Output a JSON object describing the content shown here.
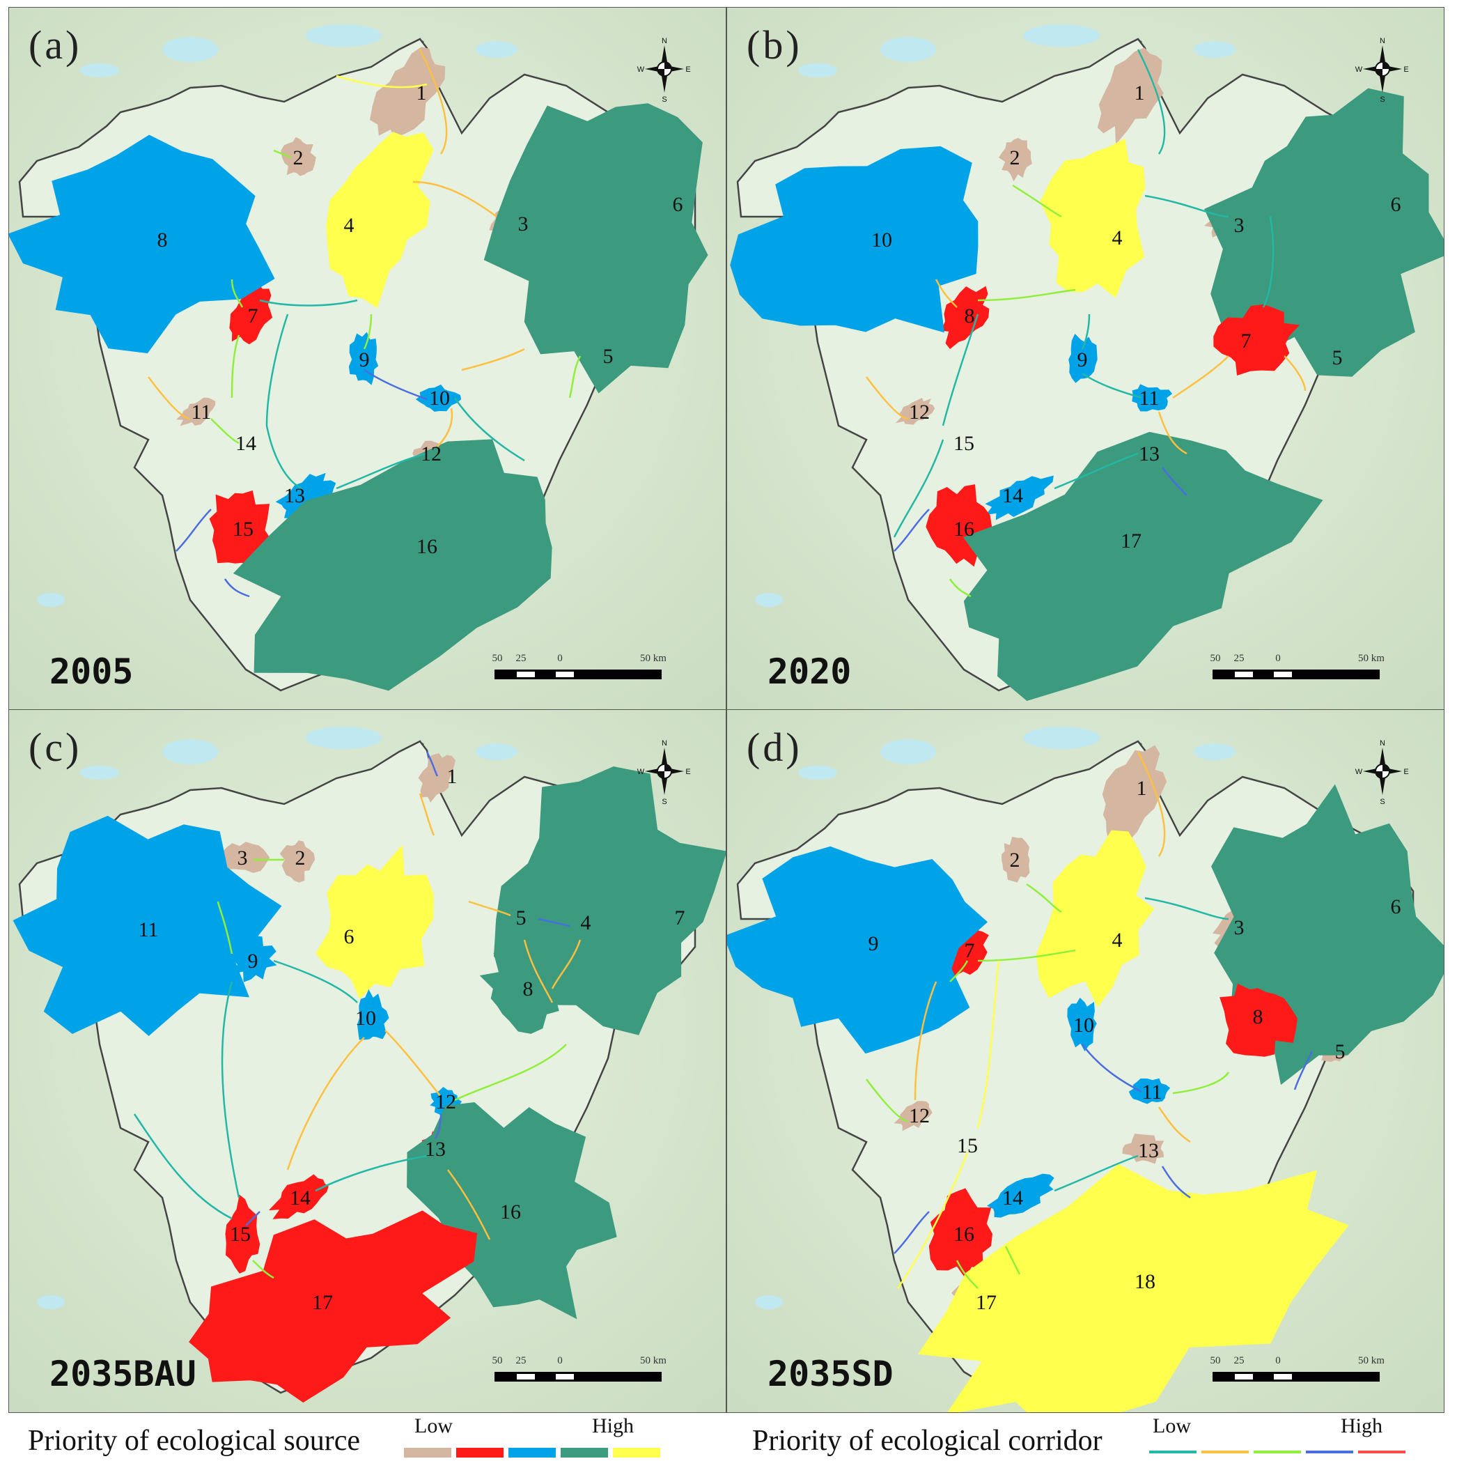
{
  "panels": [
    {
      "label": "(a)",
      "year": "2005",
      "sources": [
        {
          "n": "1",
          "p": "low"
        },
        {
          "n": "2",
          "p": "low"
        },
        {
          "n": "3",
          "p": "low"
        },
        {
          "n": "4",
          "p": "highest"
        },
        {
          "n": "5",
          "p": "low"
        },
        {
          "n": "6",
          "p": "high"
        },
        {
          "n": "7",
          "p": "medium-low"
        },
        {
          "n": "8",
          "p": "medium"
        },
        {
          "n": "9",
          "p": "medium"
        },
        {
          "n": "10",
          "p": "medium"
        },
        {
          "n": "11",
          "p": "low"
        },
        {
          "n": "12",
          "p": "low"
        },
        {
          "n": "13",
          "p": "medium"
        },
        {
          "n": "14",
          "p": "none"
        },
        {
          "n": "15",
          "p": "medium-low"
        },
        {
          "n": "16",
          "p": "high"
        }
      ]
    },
    {
      "label": "(b)",
      "year": "2020",
      "sources": [
        {
          "n": "1",
          "p": "low"
        },
        {
          "n": "2",
          "p": "low"
        },
        {
          "n": "3",
          "p": "low"
        },
        {
          "n": "4",
          "p": "highest"
        },
        {
          "n": "5",
          "p": "low"
        },
        {
          "n": "6",
          "p": "high"
        },
        {
          "n": "7",
          "p": "medium-low"
        },
        {
          "n": "8",
          "p": "medium-low"
        },
        {
          "n": "9",
          "p": "medium"
        },
        {
          "n": "10",
          "p": "medium"
        },
        {
          "n": "11",
          "p": "medium"
        },
        {
          "n": "12",
          "p": "low"
        },
        {
          "n": "13",
          "p": "low"
        },
        {
          "n": "14",
          "p": "medium"
        },
        {
          "n": "15",
          "p": "none"
        },
        {
          "n": "16",
          "p": "medium-low"
        },
        {
          "n": "17",
          "p": "high"
        }
      ]
    },
    {
      "label": "(c)",
      "year": "2035BAU",
      "sources": [
        {
          "n": "1",
          "p": "low"
        },
        {
          "n": "2",
          "p": "low"
        },
        {
          "n": "3",
          "p": "low"
        },
        {
          "n": "4",
          "p": "low"
        },
        {
          "n": "5",
          "p": "medium-low"
        },
        {
          "n": "6",
          "p": "highest"
        },
        {
          "n": "7",
          "p": "high"
        },
        {
          "n": "8",
          "p": "high"
        },
        {
          "n": "9",
          "p": "medium"
        },
        {
          "n": "10",
          "p": "medium"
        },
        {
          "n": "11",
          "p": "medium"
        },
        {
          "n": "12",
          "p": "medium"
        },
        {
          "n": "13",
          "p": "medium-low"
        },
        {
          "n": "14",
          "p": "medium-low"
        },
        {
          "n": "15",
          "p": "medium-low"
        },
        {
          "n": "16",
          "p": "high"
        },
        {
          "n": "17",
          "p": "medium-low"
        }
      ]
    },
    {
      "label": "(d)",
      "year": "2035SD",
      "sources": [
        {
          "n": "1",
          "p": "low"
        },
        {
          "n": "2",
          "p": "low"
        },
        {
          "n": "3",
          "p": "low"
        },
        {
          "n": "4",
          "p": "highest"
        },
        {
          "n": "5",
          "p": "low"
        },
        {
          "n": "6",
          "p": "high"
        },
        {
          "n": "7",
          "p": "medium-low"
        },
        {
          "n": "8",
          "p": "medium-low"
        },
        {
          "n": "9",
          "p": "medium"
        },
        {
          "n": "10",
          "p": "medium"
        },
        {
          "n": "11",
          "p": "medium"
        },
        {
          "n": "12",
          "p": "low"
        },
        {
          "n": "13",
          "p": "low"
        },
        {
          "n": "14",
          "p": "medium"
        },
        {
          "n": "15",
          "p": "none"
        },
        {
          "n": "16",
          "p": "medium-low"
        },
        {
          "n": "17",
          "p": "low"
        },
        {
          "n": "18",
          "p": "highest"
        }
      ]
    }
  ],
  "compass": {
    "n": "N",
    "s": "S",
    "e": "E",
    "w": "W"
  },
  "scale": {
    "ticks": [
      "50",
      "25",
      "0",
      "50 km"
    ]
  },
  "legend_source": {
    "title": "Priority of ecological source",
    "low": "Low",
    "high": "High",
    "colors": [
      "#d4b6a1",
      "#ff1a1a",
      "#00a2e8",
      "#3c9a7f",
      "#ffff4d"
    ]
  },
  "legend_corridor": {
    "title": "Priority of ecological corridor",
    "low": "Low",
    "high": "High",
    "colors": [
      "#23b8a5",
      "#ffbf3f",
      "#8fef3a",
      "#4a6de0",
      "#ff4a4a"
    ]
  },
  "priority_colors": {
    "low": "#d4b6a1",
    "medium-low": "#ff1a1a",
    "medium": "#00a2e8",
    "high": "#3c9a7f",
    "highest": "#ffff4d"
  }
}
